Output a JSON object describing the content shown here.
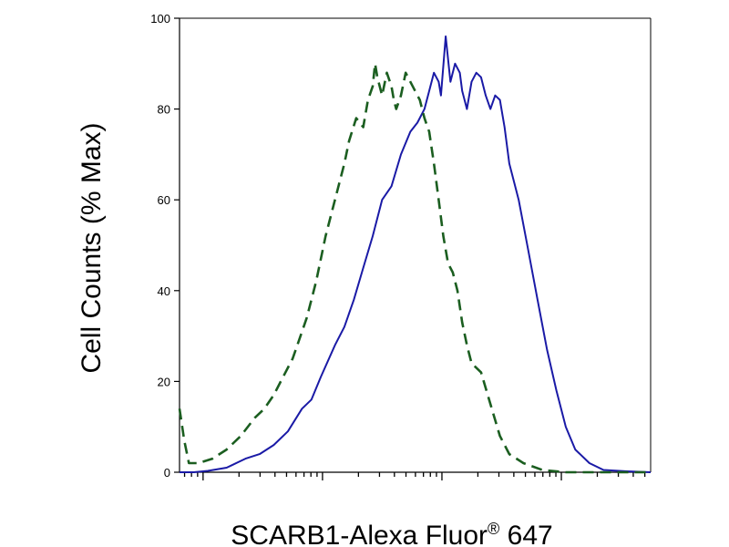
{
  "chart_data": {
    "type": "line",
    "title": "",
    "xlabel": "SCARB1-Alexa Fluor",
    "xlabel_sup": "®",
    "xlabel_tail": " 647",
    "ylabel": "Cell Counts (% Max)",
    "x_scale": "log",
    "x_tick_labels": "none",
    "ylim": [
      0,
      100
    ],
    "y_ticks": [
      0,
      20,
      40,
      60,
      80,
      100
    ],
    "y_tick_labels": [
      "0",
      "20",
      "40",
      "60",
      "80",
      "100"
    ],
    "grid": false,
    "legend": "none",
    "series": [
      {
        "style": "solid",
        "color": "#1a1aa6",
        "points": [
          [
            0.0,
            0
          ],
          [
            0.03,
            0
          ],
          [
            0.06,
            0.3
          ],
          [
            0.1,
            1
          ],
          [
            0.14,
            3
          ],
          [
            0.17,
            4
          ],
          [
            0.2,
            6
          ],
          [
            0.23,
            9
          ],
          [
            0.26,
            14
          ],
          [
            0.28,
            16
          ],
          [
            0.3,
            21
          ],
          [
            0.33,
            28
          ],
          [
            0.35,
            32
          ],
          [
            0.37,
            38
          ],
          [
            0.39,
            45
          ],
          [
            0.41,
            52
          ],
          [
            0.43,
            60
          ],
          [
            0.45,
            63
          ],
          [
            0.47,
            70
          ],
          [
            0.49,
            75
          ],
          [
            0.505,
            77
          ],
          [
            0.52,
            80
          ],
          [
            0.53,
            84
          ],
          [
            0.54,
            88
          ],
          [
            0.55,
            86
          ],
          [
            0.555,
            83
          ],
          [
            0.565,
            96
          ],
          [
            0.575,
            86
          ],
          [
            0.585,
            90
          ],
          [
            0.595,
            88
          ],
          [
            0.6,
            84
          ],
          [
            0.61,
            80
          ],
          [
            0.62,
            86
          ],
          [
            0.63,
            88
          ],
          [
            0.64,
            87
          ],
          [
            0.65,
            83
          ],
          [
            0.66,
            80
          ],
          [
            0.67,
            83
          ],
          [
            0.68,
            82
          ],
          [
            0.69,
            76
          ],
          [
            0.7,
            68
          ],
          [
            0.72,
            60
          ],
          [
            0.74,
            49
          ],
          [
            0.76,
            38
          ],
          [
            0.78,
            27
          ],
          [
            0.8,
            18
          ],
          [
            0.82,
            10
          ],
          [
            0.84,
            5
          ],
          [
            0.87,
            2
          ],
          [
            0.9,
            0.5
          ],
          [
            0.95,
            0.2
          ],
          [
            1.0,
            0
          ]
        ]
      },
      {
        "style": "dashed",
        "color": "#1b5e20",
        "points": [
          [
            0.0,
            14
          ],
          [
            0.01,
            7
          ],
          [
            0.02,
            2
          ],
          [
            0.04,
            2
          ],
          [
            0.07,
            3
          ],
          [
            0.1,
            5
          ],
          [
            0.13,
            8
          ],
          [
            0.16,
            12
          ],
          [
            0.18,
            14
          ],
          [
            0.2,
            17
          ],
          [
            0.22,
            21
          ],
          [
            0.24,
            25
          ],
          [
            0.25,
            28
          ],
          [
            0.27,
            34
          ],
          [
            0.29,
            42
          ],
          [
            0.31,
            52
          ],
          [
            0.33,
            60
          ],
          [
            0.35,
            68
          ],
          [
            0.36,
            73
          ],
          [
            0.375,
            78
          ],
          [
            0.39,
            76
          ],
          [
            0.4,
            82
          ],
          [
            0.41,
            85
          ],
          [
            0.415,
            90
          ],
          [
            0.42,
            87
          ],
          [
            0.43,
            83
          ],
          [
            0.44,
            88
          ],
          [
            0.45,
            85
          ],
          [
            0.455,
            82
          ],
          [
            0.46,
            80
          ],
          [
            0.47,
            83
          ],
          [
            0.48,
            88
          ],
          [
            0.49,
            86
          ],
          [
            0.5,
            84
          ],
          [
            0.51,
            82
          ],
          [
            0.52,
            78
          ],
          [
            0.53,
            75
          ],
          [
            0.54,
            68
          ],
          [
            0.55,
            60
          ],
          [
            0.56,
            52
          ],
          [
            0.57,
            46
          ],
          [
            0.58,
            44
          ],
          [
            0.59,
            40
          ],
          [
            0.6,
            33
          ],
          [
            0.61,
            28
          ],
          [
            0.62,
            24
          ],
          [
            0.64,
            22
          ],
          [
            0.66,
            15
          ],
          [
            0.68,
            8
          ],
          [
            0.7,
            4
          ],
          [
            0.73,
            2
          ],
          [
            0.77,
            0.5
          ],
          [
            0.82,
            0
          ],
          [
            1.0,
            0
          ]
        ]
      }
    ]
  }
}
